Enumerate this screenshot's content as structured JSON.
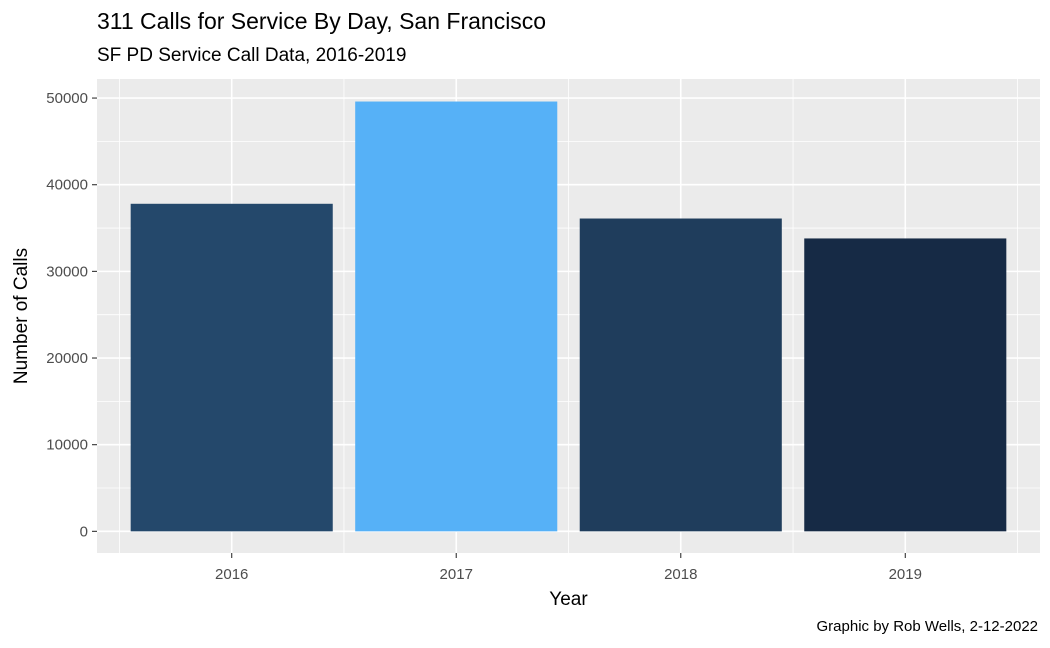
{
  "chart_data": {
    "type": "bar",
    "title": "311 Calls for Service By Day, San Francisco",
    "subtitle": "SF PD Service Call Data, 2016-2019",
    "caption": "Graphic by Rob Wells, 2-12-2022",
    "xlabel": "Year",
    "ylabel": "Number of Calls",
    "categories": [
      "2016",
      "2017",
      "2018",
      "2019"
    ],
    "values": [
      37800,
      49600,
      36100,
      33800
    ],
    "colors": [
      "#24486b",
      "#56b1f7",
      "#1f3d5c",
      "#162a45"
    ],
    "ylim": [
      -2500,
      52200
    ],
    "yticks": [
      0,
      10000,
      20000,
      30000,
      40000,
      50000
    ],
    "grid": true,
    "legend": "none",
    "panel_background": "#ebebeb",
    "grid_color": "#ffffff"
  }
}
